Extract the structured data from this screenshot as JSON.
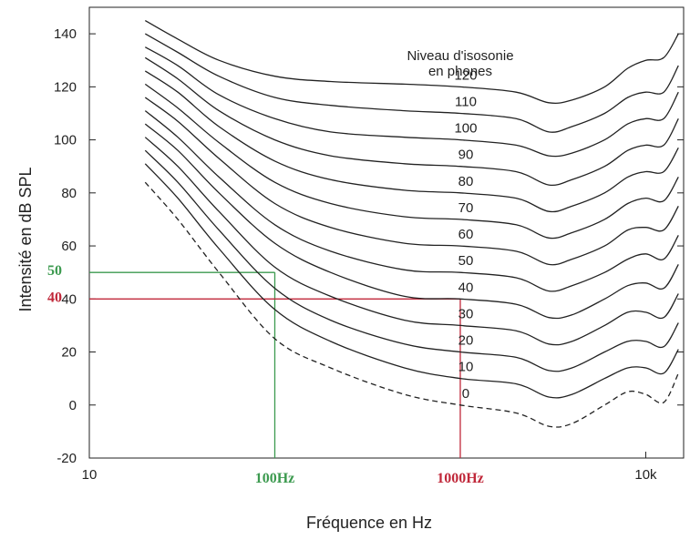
{
  "chart_data": {
    "type": "line",
    "title": "",
    "xlabel": "Fréquence en Hz",
    "ylabel": "Intensité en dB SPL",
    "x_scale": "log",
    "xlim": [
      10,
      16000
    ],
    "ylim": [
      -20,
      150
    ],
    "yticks": [
      -20,
      0,
      20,
      40,
      60,
      80,
      100,
      120,
      140
    ],
    "xticks": [
      {
        "value": 10,
        "label": "10"
      },
      {
        "value": 10000,
        "label": "10k"
      }
    ],
    "legend_title": [
      "Niveau d'isosonie",
      "en phones"
    ],
    "freqs": [
      20,
      30,
      50,
      100,
      200,
      500,
      1000,
      2000,
      3000,
      4000,
      6000,
      8000,
      10000,
      12500,
      15000
    ],
    "series": [
      {
        "name": "120",
        "values": [
          145,
          138,
          130,
          124,
          122,
          121,
          120,
          118,
          114,
          115,
          120,
          127,
          130,
          131,
          140
        ]
      },
      {
        "name": "110",
        "values": [
          140,
          133,
          124,
          116,
          113,
          111,
          110,
          108,
          103,
          105,
          110,
          116,
          118,
          118,
          128
        ]
      },
      {
        "name": "100",
        "values": [
          135,
          128,
          117,
          108,
          103,
          101,
          100,
          98,
          94,
          95,
          100,
          106,
          108,
          108,
          118
        ]
      },
      {
        "name": "90",
        "values": [
          131,
          123,
          111,
          100,
          94,
          91,
          90,
          88,
          83,
          85,
          90,
          96,
          98,
          98,
          108
        ]
      },
      {
        "name": "80",
        "values": [
          126,
          118,
          105,
          92,
          85,
          81,
          80,
          78,
          73,
          75,
          80,
          86,
          88,
          88,
          97
        ]
      },
      {
        "name": "70",
        "values": [
          121,
          112,
          99,
          84,
          76,
          71,
          70,
          68,
          63,
          65,
          70,
          76,
          78,
          77,
          86
        ]
      },
      {
        "name": "60",
        "values": [
          116,
          107,
          93,
          76,
          67,
          61,
          60,
          58,
          53,
          55,
          60,
          66,
          67,
          66,
          75
        ]
      },
      {
        "name": "50",
        "values": [
          111,
          101,
          86,
          68,
          58,
          51,
          50,
          48,
          43,
          45,
          50,
          55,
          57,
          55,
          64
        ]
      },
      {
        "name": "40",
        "values": [
          106,
          96,
          80,
          61,
          50,
          41,
          40,
          38,
          33,
          34,
          40,
          45,
          46,
          44,
          53
        ]
      },
      {
        "name": "30",
        "values": [
          101,
          90,
          73,
          52,
          41,
          32,
          30,
          28,
          23,
          24,
          30,
          35,
          35,
          33,
          42
        ]
      },
      {
        "name": "20",
        "values": [
          96,
          84,
          66,
          44,
          32,
          23,
          20,
          18,
          13,
          14,
          20,
          24,
          24,
          22,
          31
        ]
      },
      {
        "name": "10",
        "values": [
          91,
          78,
          59,
          36,
          24,
          14,
          10,
          8,
          3,
          4,
          10,
          14,
          14,
          12,
          21
        ]
      },
      {
        "name": "0",
        "dashed": true,
        "values": [
          84,
          70,
          50,
          25,
          14,
          4,
          0,
          -3,
          -8,
          -7,
          0,
          5,
          4,
          1,
          12
        ]
      }
    ],
    "annotations": [
      {
        "freq": 100,
        "level": 50,
        "freq_label": "100Hz",
        "level_label": "50",
        "color": "#3c9a4f"
      },
      {
        "freq": 1000,
        "level": 40,
        "freq_label": "1000Hz",
        "level_label": "40",
        "color": "#c0283a"
      }
    ],
    "grid": false,
    "line_color": "#222222"
  }
}
